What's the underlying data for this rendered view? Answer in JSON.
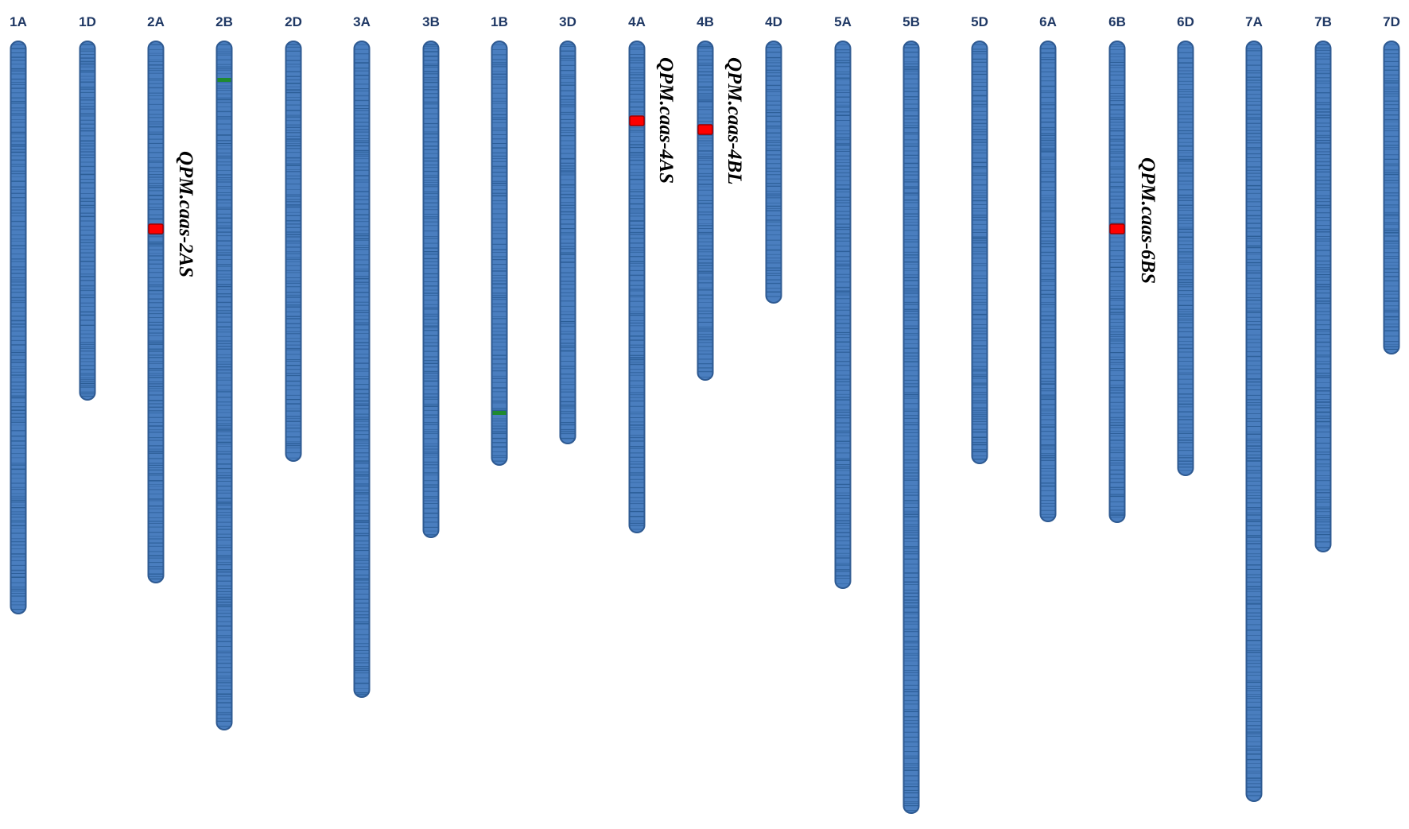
{
  "colors": {
    "chromosome_fill": "#4a7ebf",
    "chromosome_stroke": "#2e5a92",
    "marker_band": "#2b5d96",
    "qtl_marker": "#ff0000",
    "qtl_marker_stroke": "#a00000",
    "green_marker": "#1f8a2f",
    "label_color": "#1f3864",
    "qtl_label_color": "#000000"
  },
  "chromosomes": [
    {
      "name": "1A"
    },
    {
      "name": "1D"
    },
    {
      "name": "2A"
    },
    {
      "name": "2B"
    },
    {
      "name": "2D"
    },
    {
      "name": "3A"
    },
    {
      "name": "3B"
    },
    {
      "name": "1B"
    },
    {
      "name": "3D"
    },
    {
      "name": "4A"
    },
    {
      "name": "4B"
    },
    {
      "name": "4D"
    },
    {
      "name": "5A"
    },
    {
      "name": "5B"
    },
    {
      "name": "5D"
    },
    {
      "name": "6A"
    },
    {
      "name": "6B"
    },
    {
      "name": "6D"
    },
    {
      "name": "7A"
    },
    {
      "name": "7B"
    },
    {
      "name": "7D"
    }
  ],
  "qtls": [
    {
      "name": "QPM.caas-2AS",
      "chromosome": "2A"
    },
    {
      "name": "QPM.caas-4AS",
      "chromosome": "4A"
    },
    {
      "name": "QPM.caas-4BL",
      "chromosome": "4B"
    },
    {
      "name": "QPM.caas-6BS",
      "chromosome": "6B"
    }
  ]
}
